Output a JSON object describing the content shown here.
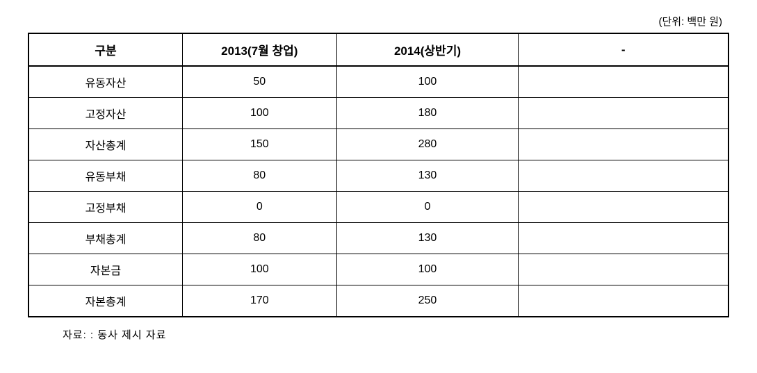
{
  "table": {
    "unit_label": "(단위: 백만 원)",
    "columns": [
      "구분",
      "2013(7월 창업)",
      "2014(상반기)",
      "-"
    ],
    "rows": [
      [
        "유동자산",
        "50",
        "100",
        ""
      ],
      [
        "고정자산",
        "100",
        "180",
        ""
      ],
      [
        "자산총계",
        "150",
        "280",
        ""
      ],
      [
        "유동부채",
        "80",
        "130",
        ""
      ],
      [
        "고정부채",
        "0",
        "0",
        ""
      ],
      [
        "부채총계",
        "80",
        "130",
        ""
      ],
      [
        "자본금",
        "100",
        "100",
        ""
      ],
      [
        "자본총계",
        "170",
        "250",
        ""
      ]
    ],
    "source_note": "자료: : 동사 제시 자료"
  },
  "style": {
    "background_color": "#ffffff",
    "text_color": "#000000",
    "border_color": "#000000",
    "header_fontsize": 17,
    "cell_fontsize": 16,
    "label_fontsize": 15
  }
}
